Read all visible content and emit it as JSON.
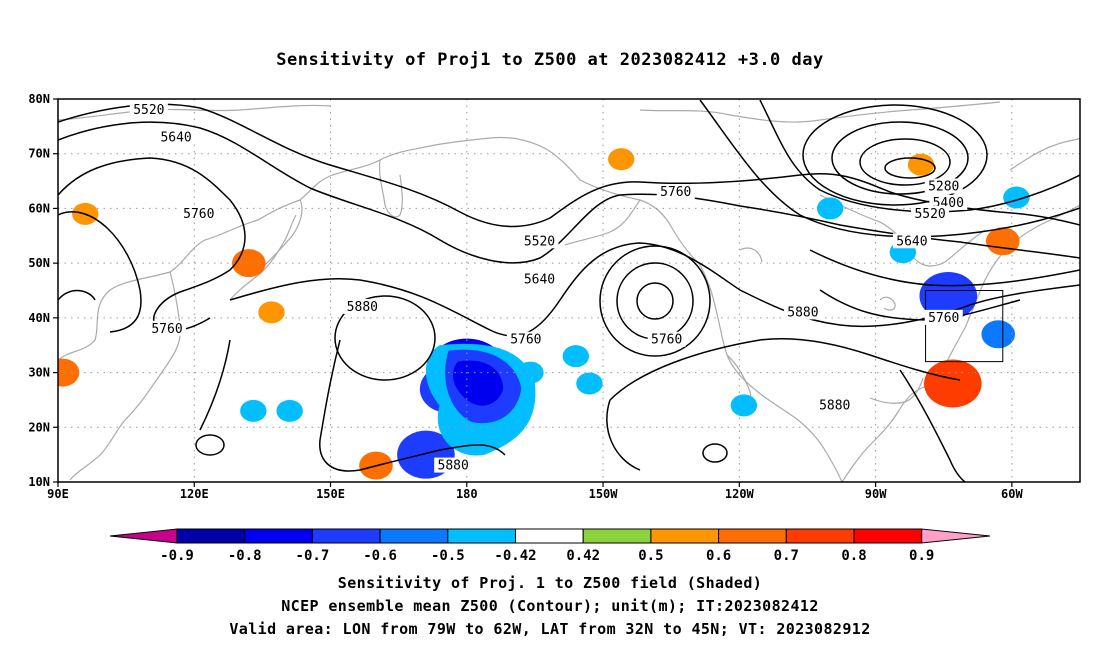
{
  "title": "Sensitivity of Proj1 to Z500 at 2023082412 +3.0 day",
  "map": {
    "lat_ticks": [
      "80N",
      "70N",
      "60N",
      "50N",
      "40N",
      "30N",
      "20N",
      "10N"
    ],
    "lon_ticks": [
      "90E",
      "120E",
      "150E",
      "180",
      "150W",
      "120W",
      "90W",
      "60W"
    ],
    "extent": {
      "lon_min": 90,
      "lon_max": 315,
      "lat_min": 10,
      "lat_max": 80
    },
    "valid_box": {
      "lon_min": 281,
      "lon_max": 298,
      "lat_min": 32,
      "lat_max": 45
    },
    "contour_labels": [
      {
        "text": "5520",
        "lon": 110,
        "lat": 78
      },
      {
        "text": "5640",
        "lon": 116,
        "lat": 73
      },
      {
        "text": "5760",
        "lon": 121,
        "lat": 59
      },
      {
        "text": "5760",
        "lon": 114,
        "lat": 38
      },
      {
        "text": "5880",
        "lon": 157,
        "lat": 42
      },
      {
        "text": "5520",
        "lon": 196,
        "lat": 54
      },
      {
        "text": "5640",
        "lon": 196,
        "lat": 47
      },
      {
        "text": "5760",
        "lon": 193,
        "lat": 36
      },
      {
        "text": "5880",
        "lon": 177,
        "lat": 13
      },
      {
        "text": "5760",
        "lon": 226,
        "lat": 63
      },
      {
        "text": "5760",
        "lon": 224,
        "lat": 36
      },
      {
        "text": "5880",
        "lon": 254,
        "lat": 41
      },
      {
        "text": "5880",
        "lon": 261,
        "lat": 24
      },
      {
        "text": "5280",
        "lon": 285,
        "lat": 64
      },
      {
        "text": "5400",
        "lon": 286,
        "lat": 61
      },
      {
        "text": "5520",
        "lon": 282,
        "lat": 59
      },
      {
        "text": "5640",
        "lon": 278,
        "lat": 54
      },
      {
        "text": "5760",
        "lon": 285,
        "lat": 40
      }
    ]
  },
  "colorbar": {
    "labels": [
      "-0.9",
      "-0.8",
      "-0.7",
      "-0.6",
      "-0.5",
      "-0.42",
      "0.42",
      "0.5",
      "0.6",
      "0.7",
      "0.8",
      "0.9"
    ],
    "colors": [
      "#0000a8",
      "#0000f0",
      "#1e3cff",
      "#0a78ff",
      "#00beff",
      "#ffffff",
      "#8cd23c",
      "#ff9600",
      "#ff6e00",
      "#ff3c00",
      "#ff0000"
    ],
    "low_end": "#c8008c",
    "high_end": "#ffa0c8"
  },
  "shading": [
    {
      "lon": 180,
      "lat": 30,
      "level": -0.8
    },
    {
      "lon": 176,
      "lat": 27,
      "level": -0.7
    },
    {
      "lon": 186,
      "lat": 31,
      "level": -0.6
    },
    {
      "lon": 183,
      "lat": 22,
      "level": -0.5
    },
    {
      "lon": 171,
      "lat": 15,
      "level": -0.7
    },
    {
      "lon": 194,
      "lat": 30,
      "level": -0.5
    },
    {
      "lon": 204,
      "lat": 33,
      "level": -0.5
    },
    {
      "lon": 207,
      "lat": 28,
      "level": -0.5
    },
    {
      "lon": 141,
      "lat": 23,
      "level": -0.5
    },
    {
      "lon": 241,
      "lat": 24,
      "level": -0.5
    },
    {
      "lon": 286,
      "lat": 44,
      "level": -0.7
    },
    {
      "lon": 297,
      "lat": 37,
      "level": -0.6
    },
    {
      "lon": 276,
      "lat": 52,
      "level": -0.5
    },
    {
      "lon": 260,
      "lat": 60,
      "level": -0.5
    },
    {
      "lon": 301,
      "lat": 62,
      "level": -0.5
    },
    {
      "lon": 133,
      "lat": 23,
      "level": -0.5
    },
    {
      "lon": 287,
      "lat": 28,
      "level": 0.7
    },
    {
      "lon": 287,
      "lat": 28,
      "level": 0.5
    },
    {
      "lon": 214,
      "lat": 69,
      "level": 0.5
    },
    {
      "lon": 298,
      "lat": 54,
      "level": 0.6
    },
    {
      "lon": 96,
      "lat": 59,
      "level": 0.5
    },
    {
      "lon": 132,
      "lat": 50,
      "level": 0.6
    },
    {
      "lon": 160,
      "lat": 13,
      "level": 0.6
    },
    {
      "lon": 91,
      "lat": 30,
      "level": 0.6
    },
    {
      "lon": 280,
      "lat": 68,
      "level": 0.5
    },
    {
      "lon": 137,
      "lat": 41,
      "level": 0.5
    }
  ],
  "captions": {
    "line1": "Sensitivity of Proj. 1 to Z500 field (Shaded)",
    "line2": "NCEP ensemble mean Z500 (Contour); unit(m); IT:2023082412",
    "line3": "Valid area: LON from 79W to 62W, LAT from 32N to 45N; VT: 2023082912"
  }
}
